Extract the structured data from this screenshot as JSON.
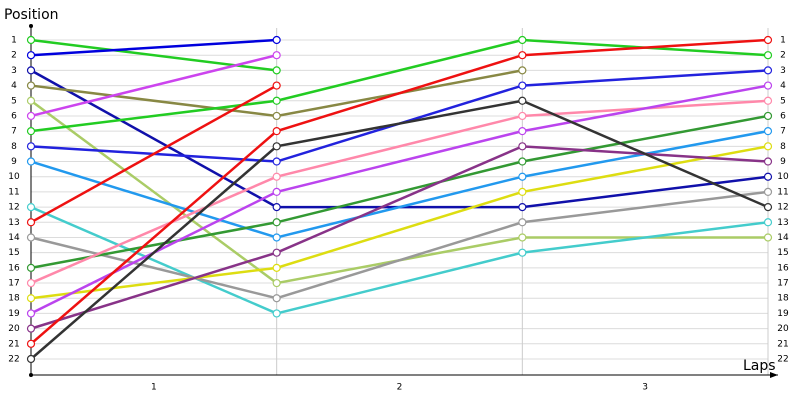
{
  "chart_data": {
    "type": "line",
    "y_label": "Position",
    "x_label": "Laps",
    "lap_labels": [
      "1",
      "2",
      "3"
    ],
    "x": [
      0,
      1,
      2,
      3
    ],
    "xlim": [
      0,
      3
    ],
    "ylim": [
      1,
      22
    ],
    "y_inverted": true,
    "yticks": [
      1,
      2,
      3,
      4,
      5,
      6,
      7,
      8,
      9,
      10,
      11,
      12,
      13,
      14,
      15,
      16,
      17,
      18,
      19,
      20,
      21,
      22
    ],
    "grid": true,
    "series": [
      {
        "color": "#22cc22",
        "values": [
          1,
          3,
          null,
          null
        ]
      },
      {
        "color": "#0000dd",
        "values": [
          2,
          1,
          null,
          null
        ]
      },
      {
        "color": "#1010aa",
        "values": [
          3,
          12,
          12,
          10
        ]
      },
      {
        "color": "#888844",
        "values": [
          4,
          6,
          3,
          null
        ]
      },
      {
        "color": "#aacc66",
        "values": [
          5,
          17,
          14,
          14
        ]
      },
      {
        "color": "#cc44ee",
        "values": [
          6,
          2,
          null,
          null
        ]
      },
      {
        "color": "#22cc22",
        "values": [
          7,
          5,
          1,
          2
        ]
      },
      {
        "color": "#2222dd",
        "values": [
          8,
          9,
          4,
          3
        ]
      },
      {
        "color": "#2299ee",
        "values": [
          9,
          14,
          10,
          7
        ]
      },
      {
        "color": "#44cccc",
        "values": [
          12,
          19,
          15,
          13
        ]
      },
      {
        "color": "#ee1111",
        "values": [
          13,
          4,
          null,
          null
        ]
      },
      {
        "color": "#999999",
        "values": [
          14,
          18,
          13,
          11
        ]
      },
      {
        "color": "#339933",
        "values": [
          16,
          13,
          9,
          6
        ]
      },
      {
        "color": "#ff88aa",
        "values": [
          17,
          10,
          6,
          5
        ]
      },
      {
        "color": "#dddd11",
        "values": [
          18,
          16,
          11,
          8
        ]
      },
      {
        "color": "#bb44ee",
        "values": [
          19,
          11,
          7,
          4
        ]
      },
      {
        "color": "#883388",
        "values": [
          20,
          15,
          8,
          9
        ]
      },
      {
        "color": "#ee1111",
        "values": [
          21,
          7,
          2,
          1
        ]
      },
      {
        "color": "#333333",
        "values": [
          22,
          8,
          5,
          12
        ]
      }
    ]
  }
}
